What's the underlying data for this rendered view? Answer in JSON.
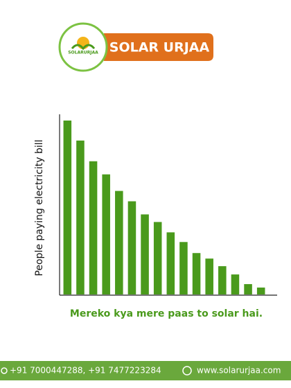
{
  "header": {
    "brand": "SOLAR URJAA",
    "logo_text": "SOLARURJAA"
  },
  "chart_data": {
    "type": "bar",
    "ylabel": "People paying electricity bill",
    "categories": [
      null,
      null,
      null,
      null,
      null,
      null,
      null,
      null,
      null,
      null,
      null,
      null,
      null,
      null,
      null,
      null
    ],
    "values": [
      252,
      223,
      193,
      174,
      150,
      135,
      116,
      105,
      90,
      76,
      60,
      52,
      41,
      29,
      15,
      10
    ],
    "color": "#4a9a1c",
    "ylim": [
      0,
      260
    ]
  },
  "caption": "Mereko kya mere paas to solar hai.",
  "footer": {
    "phones": "+91 7000447288, +91 7477223284",
    "website": "www.solarurjaa.com"
  }
}
